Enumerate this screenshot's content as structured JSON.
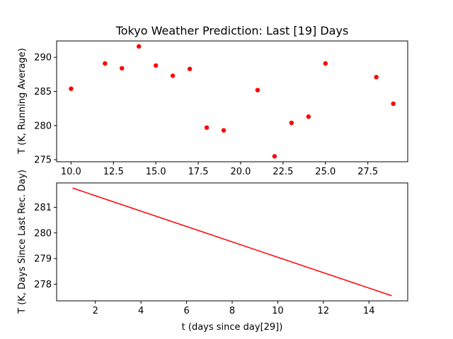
{
  "chart_data": [
    {
      "type": "scatter",
      "title": "Tokyo Weather Prediction: Last [19] Days",
      "xlabel": "",
      "ylabel": "T (K, Running Average)",
      "xlim": [
        9.15,
        29.85
      ],
      "ylim": [
        274.7,
        292.4
      ],
      "xticks": [
        10.0,
        12.5,
        15.0,
        17.5,
        20.0,
        22.5,
        25.0,
        27.5
      ],
      "xtick_labels": [
        "10.0",
        "12.5",
        "15.0",
        "17.5",
        "20.0",
        "22.5",
        "25.0",
        "27.5"
      ],
      "yticks": [
        275,
        280,
        285,
        290
      ],
      "ytick_labels": [
        "275",
        "280",
        "285",
        "290"
      ],
      "color": "#ff0000",
      "series": [
        {
          "x": [
            10,
            12,
            13,
            14,
            15,
            16,
            17,
            18,
            19,
            21,
            22,
            23,
            24,
            25,
            28,
            29
          ],
          "y": [
            285.4,
            289.1,
            288.4,
            291.6,
            288.8,
            287.3,
            288.3,
            279.7,
            279.3,
            285.2,
            275.5,
            280.4,
            281.3,
            289.1,
            287.1,
            283.2
          ]
        }
      ]
    },
    {
      "type": "line",
      "title": "",
      "xlabel": "t (days since day[29])",
      "ylabel": "T (K, Days Since Last Rec. Day)",
      "xlim": [
        0.3,
        15.7
      ],
      "ylim": [
        277.35,
        281.95
      ],
      "xticks": [
        2,
        4,
        6,
        8,
        10,
        12,
        14
      ],
      "xtick_labels": [
        "2",
        "4",
        "6",
        "8",
        "10",
        "12",
        "14"
      ],
      "yticks": [
        278,
        279,
        280,
        281
      ],
      "ytick_labels": [
        "278",
        "279",
        "280",
        "281"
      ],
      "color": "#ff0000",
      "series": [
        {
          "x": [
            1,
            15
          ],
          "y": [
            281.75,
            277.55
          ]
        }
      ]
    }
  ]
}
